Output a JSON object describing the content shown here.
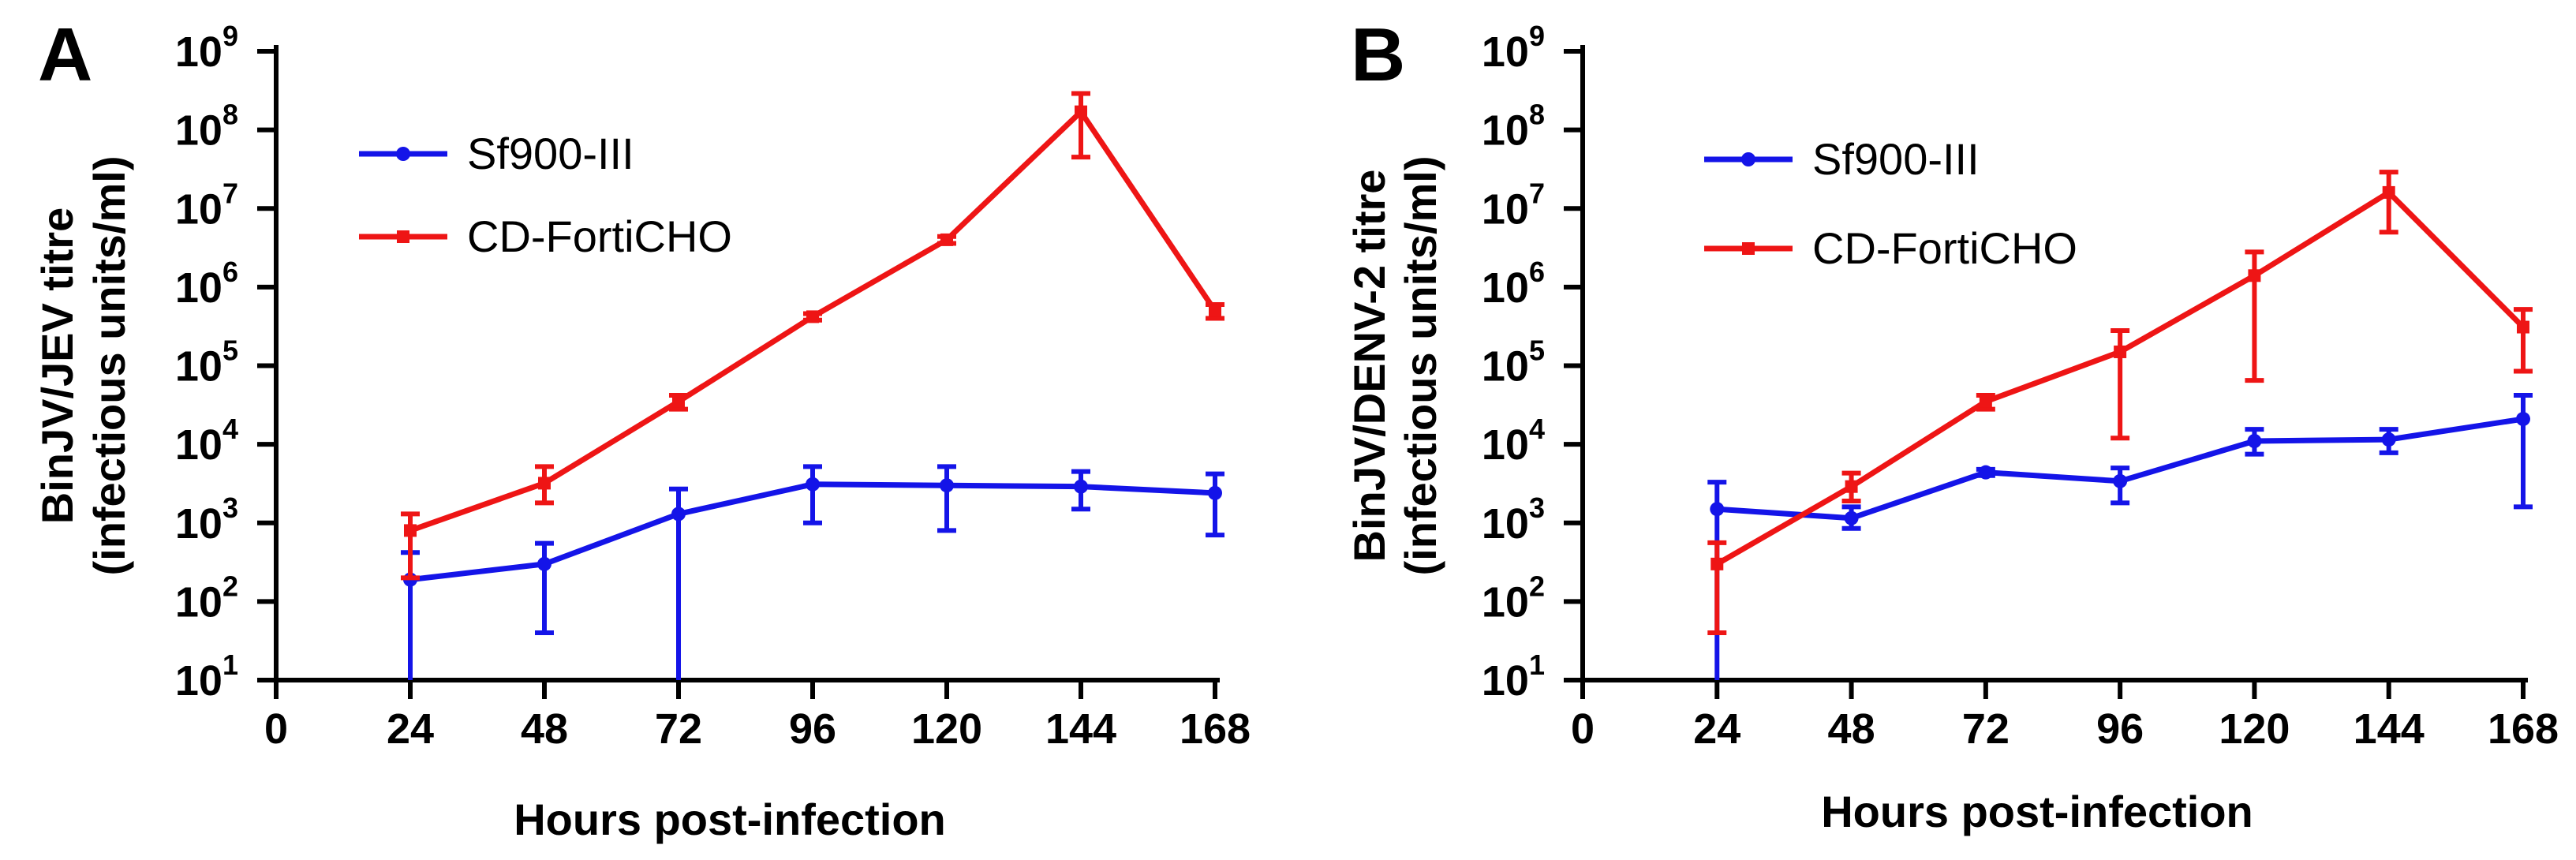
{
  "chart_data": [
    {
      "type": "line",
      "panel": "A",
      "xlabel": "Hours post-infection",
      "ylabel_line1": "BinJV/JEV titre",
      "ylabel_line2": "(infectious units/ml)",
      "yscale": "log",
      "xlim": [
        0,
        168
      ],
      "ylim": [
        10,
        1000000000
      ],
      "x_ticks": [
        0,
        24,
        48,
        72,
        96,
        120,
        144,
        168
      ],
      "x_tick_labels": [
        "0",
        "24",
        "48",
        "72",
        "96",
        "120",
        "144",
        "168"
      ],
      "y_tick_exponents": [
        1,
        2,
        3,
        4,
        5,
        6,
        7,
        8,
        9
      ],
      "y_tick_base": "10",
      "legend_position": "top-left",
      "series": [
        {
          "name": "Sf900-III",
          "color": "#1414e8",
          "marker": "circle",
          "x": [
            24,
            48,
            72,
            96,
            120,
            144,
            168
          ],
          "y": [
            190,
            300,
            1300,
            3100,
            3000,
            2900,
            2400
          ],
          "err_low": [
            10,
            40,
            10,
            1000,
            800,
            1500,
            700
          ],
          "err_high": [
            420,
            550,
            2700,
            5200,
            5200,
            4500,
            4200
          ]
        },
        {
          "name": "CD-FortiCHO",
          "color": "#ee1515",
          "marker": "square",
          "x": [
            24,
            48,
            72,
            96,
            120,
            144,
            168
          ],
          "y": [
            800,
            3200,
            35000,
            420000,
            4000000,
            170000000,
            500000
          ],
          "err_low": [
            200,
            1800,
            28000,
            380000,
            3600000,
            45000000,
            400000
          ],
          "err_high": [
            1300,
            5200,
            42000,
            460000,
            4400000,
            290000000,
            600000
          ]
        }
      ]
    },
    {
      "type": "line",
      "panel": "B",
      "xlabel": "Hours post-infection",
      "ylabel_line1": "BinJV/DENV-2 titre",
      "ylabel_line2": "(infectious units/ml)",
      "yscale": "log",
      "xlim": [
        0,
        168
      ],
      "ylim": [
        10,
        1000000000
      ],
      "x_ticks": [
        0,
        24,
        48,
        72,
        96,
        120,
        144,
        168
      ],
      "x_tick_labels": [
        "0",
        "24",
        "48",
        "72",
        "96",
        "120",
        "144",
        "168"
      ],
      "y_tick_exponents": [
        1,
        2,
        3,
        4,
        5,
        6,
        7,
        8,
        9
      ],
      "y_tick_base": "10",
      "legend_position": "top-left",
      "series": [
        {
          "name": "Sf900-III",
          "color": "#1414e8",
          "marker": "circle",
          "x": [
            24,
            48,
            72,
            96,
            120,
            144,
            168
          ],
          "y": [
            1500,
            1150,
            4400,
            3400,
            11000,
            11500,
            21000
          ],
          "err_low": [
            10,
            850,
            4000,
            1800,
            7500,
            7800,
            1600
          ],
          "err_high": [
            3300,
            1600,
            4800,
            5000,
            15500,
            15500,
            42000
          ]
        },
        {
          "name": "CD-FortiCHO",
          "color": "#ee1515",
          "marker": "square",
          "x": [
            24,
            48,
            72,
            96,
            120,
            144,
            168
          ],
          "y": [
            300,
            2900,
            35000,
            150000,
            1400000,
            16000000,
            310000
          ],
          "err_low": [
            40,
            1900,
            28000,
            12000,
            65000,
            5000000,
            85000
          ],
          "err_high": [
            560,
            4300,
            42000,
            280000,
            2800000,
            29000000,
            520000
          ]
        }
      ]
    }
  ]
}
